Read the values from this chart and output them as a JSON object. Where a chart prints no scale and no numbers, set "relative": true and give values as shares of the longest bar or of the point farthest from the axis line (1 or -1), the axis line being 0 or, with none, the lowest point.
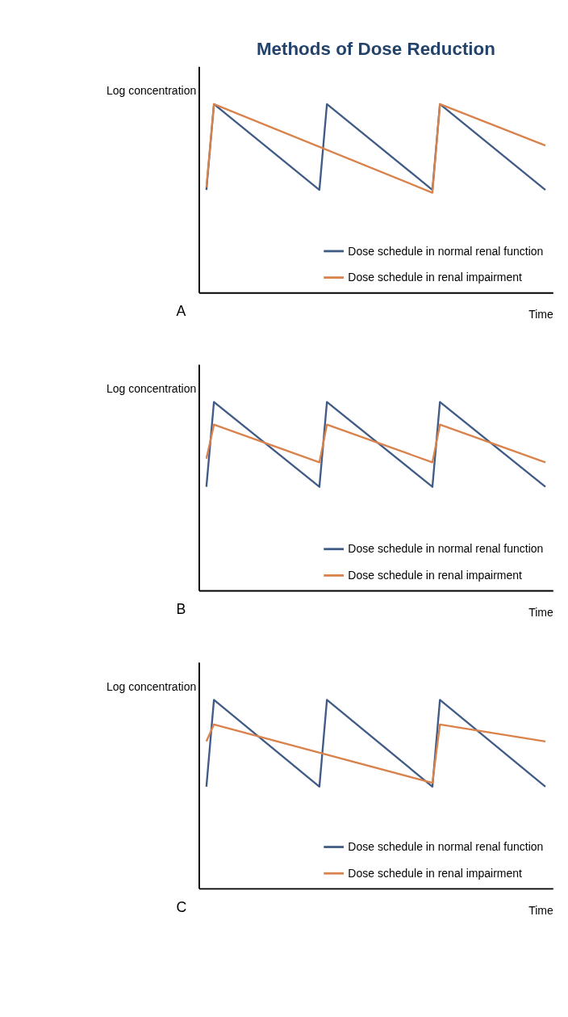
{
  "chart_data": [
    {
      "type": "line",
      "title": "Methods of Dose Reduction",
      "relative": true,
      "xlabel": "Time",
      "ylabel": "Log concentration",
      "annotations": [
        "A"
      ],
      "tick_labels": false,
      "grid": false,
      "legend": "bottom right",
      "categories": [
        null,
        null,
        null,
        null,
        null,
        null,
        null,
        null,
        null,
        null,
        null,
        null,
        null,
        null,
        null,
        null,
        null,
        null,
        null,
        null,
        null,
        null,
        null,
        null,
        null,
        null,
        null,
        null,
        null,
        null,
        null,
        null,
        null,
        null,
        null,
        null,
        null,
        null,
        null,
        null,
        null,
        null,
        null,
        null,
        null,
        null
      ],
      "series": [
        {
          "name": "Dose schedule in normal renal function",
          "color": "#3f5b86",
          "values": [
            0.545,
            1,
            null,
            null,
            null,
            null,
            null,
            null,
            null,
            null,
            null,
            null,
            null,
            null,
            null,
            0.545,
            1,
            null,
            null,
            null,
            null,
            null,
            null,
            null,
            null,
            null,
            null,
            null,
            null,
            null,
            0.545,
            1,
            null,
            null,
            null,
            null,
            null,
            null,
            null,
            null,
            null,
            null,
            null,
            null,
            null,
            0.545
          ]
        },
        {
          "name": "Dose schedule in renal impairment",
          "color": "#d9824b",
          "values": [
            0.56,
            1,
            null,
            null,
            null,
            null,
            null,
            null,
            null,
            null,
            null,
            null,
            null,
            null,
            null,
            null,
            null,
            null,
            null,
            null,
            null,
            null,
            null,
            null,
            null,
            null,
            null,
            null,
            null,
            null,
            0.53,
            1,
            null,
            null,
            null,
            null,
            null,
            null,
            null,
            null,
            null,
            null,
            null,
            null,
            null,
            0.78
          ]
        }
      ]
    },
    {
      "type": "line",
      "relative": true,
      "xlabel": "Time",
      "ylabel": "Log concentration",
      "annotations": [
        "B"
      ],
      "tick_labels": false,
      "grid": false,
      "legend": "bottom right",
      "categories": [
        null,
        null,
        null,
        null,
        null,
        null,
        null,
        null,
        null,
        null,
        null,
        null,
        null,
        null,
        null,
        null,
        null,
        null,
        null,
        null,
        null,
        null,
        null,
        null,
        null,
        null,
        null,
        null,
        null,
        null,
        null,
        null,
        null,
        null,
        null,
        null,
        null,
        null,
        null,
        null,
        null,
        null,
        null,
        null,
        null,
        null
      ],
      "series": [
        {
          "name": "Dose schedule in normal renal function",
          "color": "#3f5b86",
          "values": [
            0.55,
            1,
            null,
            null,
            null,
            null,
            null,
            null,
            null,
            null,
            null,
            null,
            null,
            null,
            null,
            0.55,
            1,
            null,
            null,
            null,
            null,
            null,
            null,
            null,
            null,
            null,
            null,
            null,
            null,
            null,
            0.55,
            1,
            null,
            null,
            null,
            null,
            null,
            null,
            null,
            null,
            null,
            null,
            null,
            null,
            null,
            0.55
          ]
        },
        {
          "name": "Dose schedule in renal impairment",
          "color": "#d9824b",
          "values": [
            0.7,
            0.88,
            null,
            null,
            null,
            null,
            null,
            null,
            null,
            null,
            null,
            null,
            null,
            null,
            null,
            0.68,
            0.88,
            null,
            null,
            null,
            null,
            null,
            null,
            null,
            null,
            null,
            null,
            null,
            null,
            null,
            0.68,
            0.88,
            null,
            null,
            null,
            null,
            null,
            null,
            null,
            null,
            null,
            null,
            null,
            null,
            null,
            0.68
          ]
        }
      ]
    },
    {
      "type": "line",
      "relative": true,
      "xlabel": "Time",
      "ylabel": "Log concentration",
      "annotations": [
        "C"
      ],
      "tick_labels": false,
      "grid": false,
      "legend": "bottom right",
      "categories": [
        null,
        null,
        null,
        null,
        null,
        null,
        null,
        null,
        null,
        null,
        null,
        null,
        null,
        null,
        null,
        null,
        null,
        null,
        null,
        null,
        null,
        null,
        null,
        null,
        null,
        null,
        null,
        null,
        null,
        null,
        null,
        null,
        null,
        null,
        null,
        null,
        null,
        null,
        null,
        null,
        null,
        null,
        null,
        null,
        null,
        null
      ],
      "series": [
        {
          "name": "Dose schedule in normal renal function",
          "color": "#3f5b86",
          "values": [
            0.54,
            1,
            null,
            null,
            null,
            null,
            null,
            null,
            null,
            null,
            null,
            null,
            null,
            null,
            null,
            0.54,
            1,
            null,
            null,
            null,
            null,
            null,
            null,
            null,
            null,
            null,
            null,
            null,
            null,
            null,
            0.54,
            1,
            null,
            null,
            null,
            null,
            null,
            null,
            null,
            null,
            null,
            null,
            null,
            null,
            null,
            0.54
          ]
        },
        {
          "name": "Dose schedule in renal impairment",
          "color": "#d9824b",
          "values": [
            0.78,
            0.87,
            null,
            null,
            null,
            null,
            null,
            null,
            null,
            null,
            null,
            null,
            null,
            null,
            null,
            null,
            null,
            null,
            null,
            null,
            null,
            null,
            null,
            null,
            null,
            null,
            null,
            null,
            null,
            null,
            0.56,
            0.87,
            null,
            null,
            null,
            null,
            null,
            null,
            null,
            null,
            null,
            null,
            null,
            null,
            null,
            0.78
          ]
        }
      ]
    }
  ]
}
